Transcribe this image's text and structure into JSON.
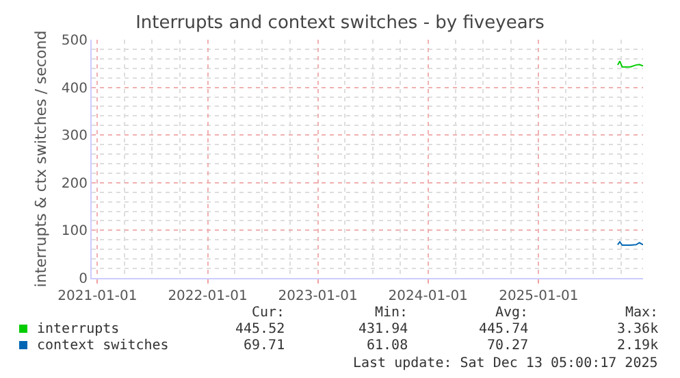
{
  "chart_data": {
    "type": "line",
    "title": "Interrupts and context switches - by fiveyears",
    "ylabel": "interrupts & ctx switches / second",
    "x": [
      "2025-09-20",
      "2025-09-27",
      "2025-10-05",
      "2025-11-01",
      "2025-11-20",
      "2025-12-01",
      "2025-12-13"
    ],
    "series": [
      {
        "name": "interrupts",
        "color": "#00cc00",
        "values": [
          447,
          455,
          443,
          443,
          447,
          448,
          445
        ]
      },
      {
        "name": "context switches",
        "color": "#0066b3",
        "values": [
          70,
          76,
          69,
          69,
          70,
          74,
          70
        ]
      }
    ],
    "xlim": [
      "2020-12-13",
      "2025-12-13"
    ],
    "xticks": [
      {
        "value": "2021-01-01",
        "label": "2021-01-01"
      },
      {
        "value": "2022-01-01",
        "label": "2022-01-01"
      },
      {
        "value": "2023-01-01",
        "label": "2023-01-01"
      },
      {
        "value": "2024-01-01",
        "label": "2024-01-01"
      },
      {
        "value": "2025-01-01",
        "label": "2025-01-01"
      }
    ],
    "ylim": [
      0,
      500
    ],
    "yticks": [
      0,
      100,
      200,
      300,
      400,
      500
    ],
    "grid": true,
    "legend": "bottom left",
    "annotations": [
      "Cur:",
      "Min:",
      "Avg:",
      "Max:",
      "445.52",
      "431.94",
      "445.74",
      "3.36k",
      "69.71",
      "61.08",
      "70.27",
      "2.19k",
      "Last update: Sat Dec 13 05:00:17 2025"
    ]
  }
}
